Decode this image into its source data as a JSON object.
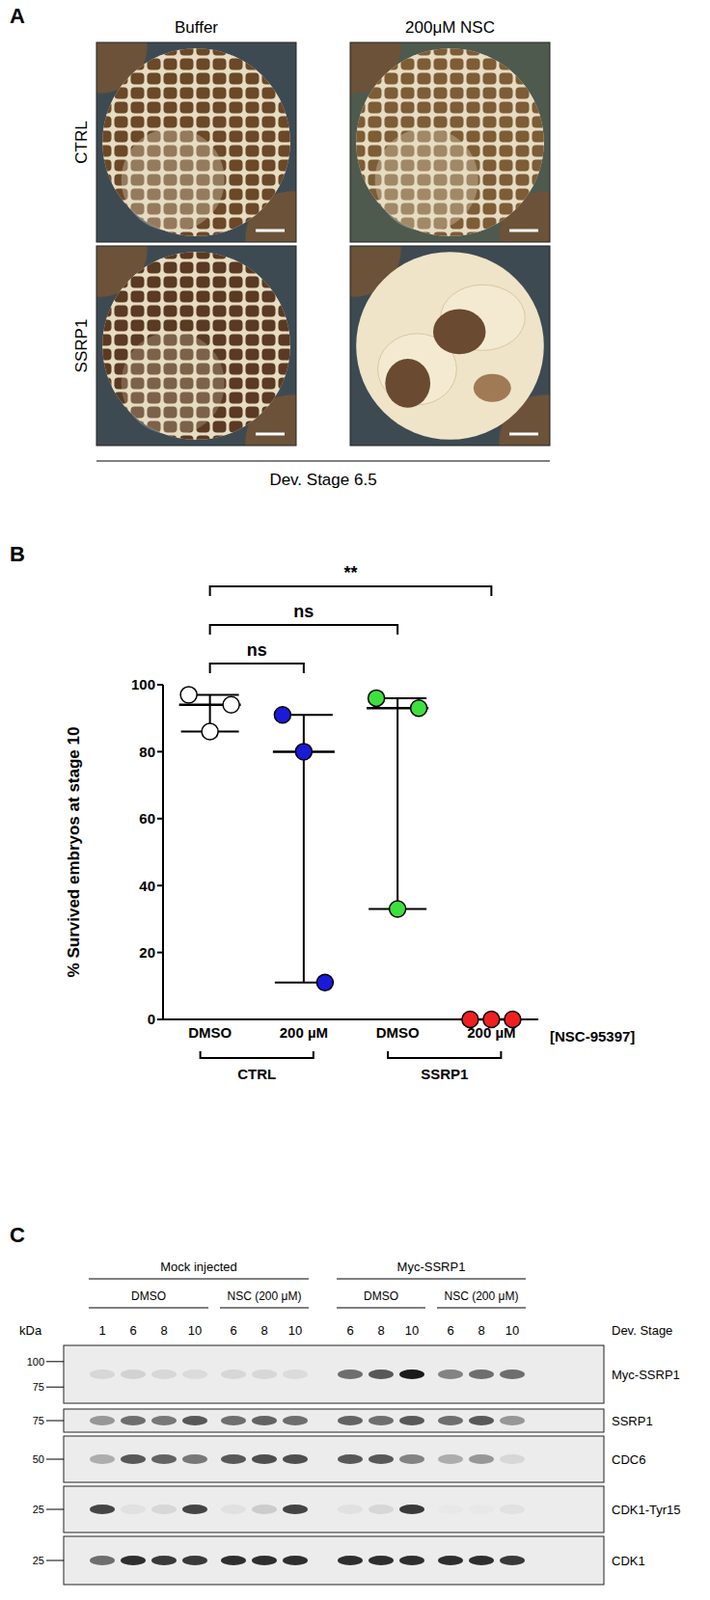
{
  "panel_a": {
    "letter": "A",
    "columns": [
      "Buffer",
      "200μM NSC"
    ],
    "rows": [
      "CTRL",
      "SSRP1"
    ],
    "caption": "Dev. Stage 6.5"
  },
  "chart_data": {
    "letter": "B",
    "type": "scatter",
    "ylabel": "% Survived embryos at stage 10",
    "categories": [
      "DMSO",
      "200 µM",
      "DMSO",
      "200 µM"
    ],
    "values": [
      [
        97,
        86,
        94
      ],
      [
        91,
        80,
        11
      ],
      [
        96,
        33,
        93
      ],
      [
        0,
        0,
        0
      ]
    ],
    "colors": [
      "#ffffff",
      "#1a1ad8",
      "#3ee03e",
      "#ee2020"
    ],
    "groups": [
      {
        "label": "CTRL",
        "from": 0,
        "to": 1
      },
      {
        "label": "SSRP1",
        "from": 2,
        "to": 3
      }
    ],
    "x_axis_label": "[NSC-95397]",
    "comparisons": [
      {
        "from": 0,
        "to": 1,
        "label": "ns"
      },
      {
        "from": 0,
        "to": 2,
        "label": "ns"
      },
      {
        "from": 0,
        "to": 3,
        "label": "**"
      }
    ],
    "ylim": [
      0,
      100
    ],
    "yticks": [
      0,
      20,
      40,
      60,
      80,
      100
    ],
    "grid": false
  },
  "panel_c": {
    "letter": "C",
    "kda_label": "kDa",
    "stage_label": "Dev. Stage",
    "groups": [
      {
        "label": "Mock injected",
        "conditions": [
          {
            "label": "DMSO",
            "stages": [
              1,
              6,
              8,
              10
            ]
          },
          {
            "label": "NSC (200 μM)",
            "stages": [
              6,
              8,
              10
            ]
          }
        ]
      },
      {
        "label": "Myc-SSRP1",
        "conditions": [
          {
            "label": "DMSO",
            "stages": [
              6,
              8,
              10
            ]
          },
          {
            "label": "NSC (200 μM)",
            "stages": [
              6,
              8,
              10
            ]
          }
        ]
      }
    ],
    "rows": [
      {
        "label": "Myc-SSRP1",
        "markers": [
          100,
          75
        ],
        "band_intensity": [
          0.1,
          0.12,
          0.1,
          0.08,
          0.1,
          0.1,
          0.08,
          0.6,
          0.7,
          1.0,
          0.5,
          0.6,
          0.6
        ]
      },
      {
        "label": "SSRP1",
        "markers": [
          75
        ],
        "band_intensity": [
          0.4,
          0.6,
          0.55,
          0.7,
          0.6,
          0.65,
          0.6,
          0.65,
          0.6,
          0.7,
          0.6,
          0.7,
          0.4
        ]
      },
      {
        "label": "CDC6",
        "markers": [
          50
        ],
        "band_intensity": [
          0.3,
          0.7,
          0.65,
          0.55,
          0.7,
          0.75,
          0.75,
          0.7,
          0.7,
          0.5,
          0.3,
          0.4,
          0.1
        ]
      },
      {
        "label": "CDK1-Tyr15",
        "markers": [
          25
        ],
        "band_intensity": [
          0.8,
          0.05,
          0.1,
          0.8,
          0.05,
          0.15,
          0.8,
          0.05,
          0.1,
          0.85,
          0.02,
          0.02,
          0.05
        ]
      },
      {
        "label": "CDK1",
        "markers": [
          25
        ],
        "band_intensity": [
          0.6,
          0.9,
          0.85,
          0.85,
          0.9,
          0.9,
          0.9,
          0.9,
          0.9,
          0.9,
          0.9,
          0.9,
          0.85
        ]
      }
    ]
  }
}
